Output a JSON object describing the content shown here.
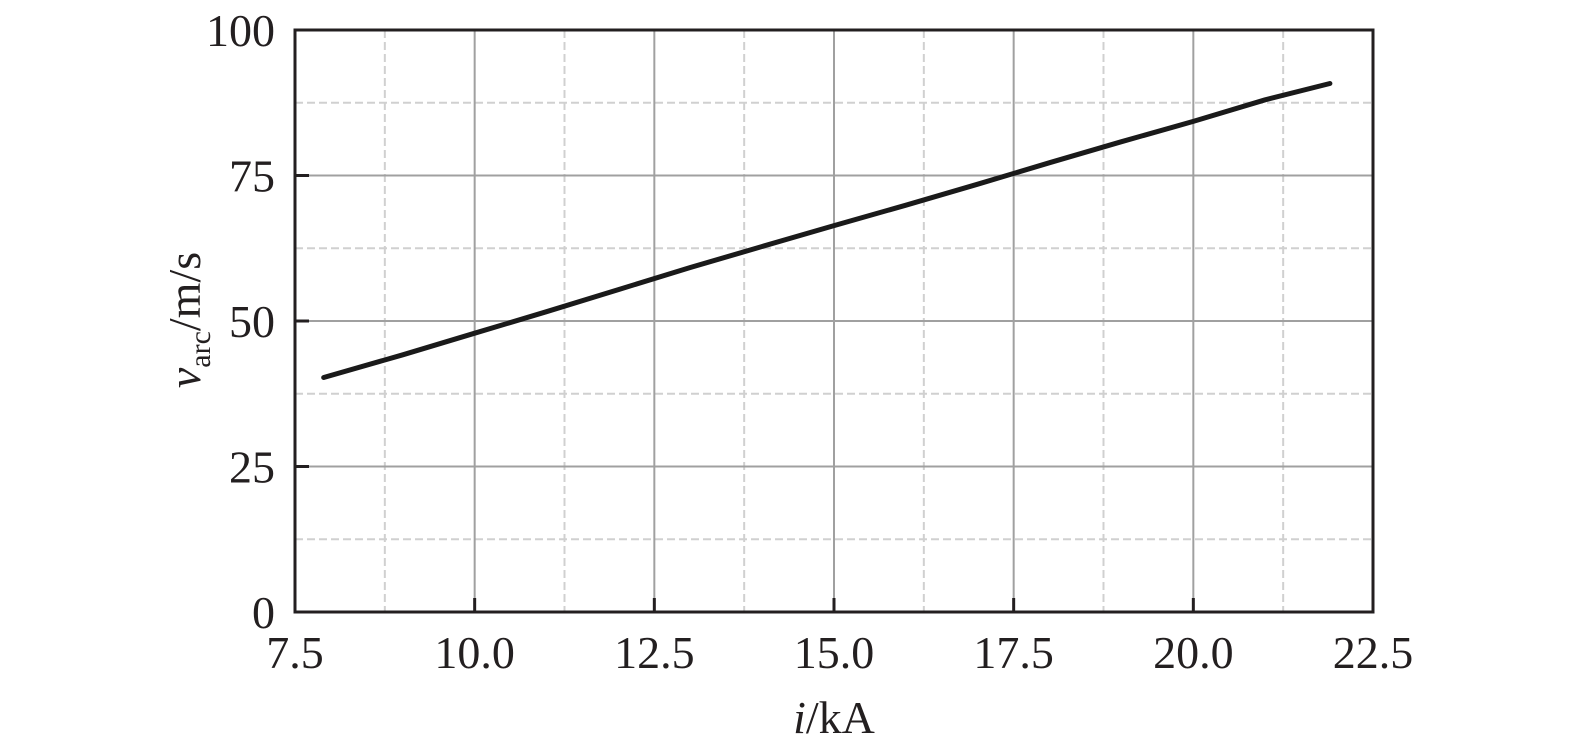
{
  "chart_data": {
    "type": "line",
    "title": "",
    "xlabel": {
      "var": "i",
      "unit": "/kA"
    },
    "ylabel": {
      "var": "v",
      "sub": "arc",
      "unit": "/m/s"
    },
    "xlim": [
      7.5,
      22.5
    ],
    "ylim": [
      0,
      100
    ],
    "x_ticks": [
      "7.5",
      "10.0",
      "12.5",
      "15.0",
      "17.5",
      "20.0",
      "22.5"
    ],
    "y_ticks": [
      "0",
      "25",
      "50",
      "75",
      "100"
    ],
    "grid": true,
    "series": [
      {
        "x": [
          7.9,
          9.0,
          10.0,
          11.0,
          12.0,
          13.0,
          14.0,
          15.0,
          16.0,
          17.0,
          18.0,
          19.0,
          20.0,
          21.0,
          21.9
        ],
        "y": [
          40.3,
          44.2,
          47.9,
          51.6,
          55.4,
          59.2,
          62.8,
          66.4,
          69.9,
          73.5,
          77.2,
          80.8,
          84.3,
          88.0,
          90.8
        ]
      }
    ],
    "colors": {
      "line": "#1a1a1a",
      "frame": "#231f20",
      "grid_major": "#a0a0a0",
      "grid_minor": "#d0d0d0"
    }
  }
}
